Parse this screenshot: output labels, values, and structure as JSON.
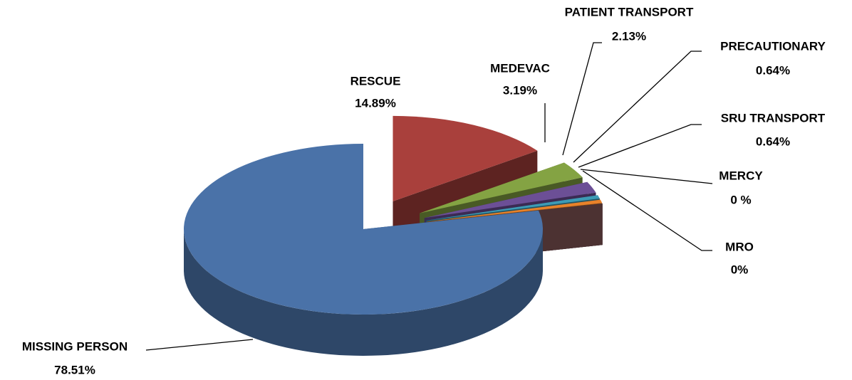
{
  "chart_data": {
    "type": "pie3d",
    "categories": [
      "MISSING PERSON",
      "RESCUE",
      "MEDEVAC",
      "PATIENT TRANSPORT",
      "PRECAUTIONARY",
      "SRU TRANSPORT",
      "MERCY",
      "MRO"
    ],
    "values": [
      78.51,
      14.89,
      3.19,
      2.13,
      0.64,
      0.64,
      0,
      0
    ],
    "value_labels": [
      "78.51%",
      "14.89%",
      "3.19%",
      "2.13%",
      "0.64%",
      "0.64%",
      "0 %",
      "0%"
    ],
    "colors": [
      "#4a72a8",
      "#a9403c",
      "#84a343",
      "#6c4f96",
      "#3d9bb5",
      "#e8822a",
      "#7a5c8f",
      "#8a5a5a"
    ]
  }
}
